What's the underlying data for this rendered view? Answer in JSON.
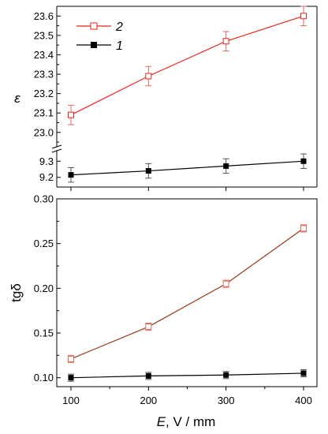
{
  "chart_data": [
    {
      "type": "line",
      "panel": "top",
      "ylabel": "ε",
      "xlabel": "",
      "x": [
        100,
        200,
        300,
        400
      ],
      "x_ticks": [
        "100",
        "200",
        "300",
        "400"
      ],
      "ylim_upper": [
        22.93,
        23.65
      ],
      "ylim_lower": [
        9.14,
        9.36
      ],
      "y_ticks_upper": [
        "23.0",
        "23.1",
        "23.2",
        "23.3",
        "23.4",
        "23.5",
        "23.6"
      ],
      "y_ticks_lower": [
        "9.2",
        "9.3"
      ],
      "axis_break": true,
      "grid": false,
      "legend_placement": "top-left",
      "series": [
        {
          "name": "2",
          "values": [
            23.09,
            23.29,
            23.47,
            23.6
          ],
          "errors": [
            0.05,
            0.05,
            0.05,
            0.05
          ],
          "color": "#e8251f",
          "marker": "open-square"
        },
        {
          "name": "1",
          "values": [
            9.215,
            9.24,
            9.27,
            9.3
          ],
          "errors": [
            0.045,
            0.045,
            0.045,
            0.045
          ],
          "color": "#000000",
          "marker": "filled-square"
        }
      ]
    },
    {
      "type": "line",
      "panel": "bottom",
      "ylabel": "tgδ",
      "xlabel": "E, V / mm",
      "x": [
        100,
        200,
        300,
        400
      ],
      "x_ticks": [
        "100",
        "200",
        "300",
        "400"
      ],
      "ylim": [
        0.09,
        0.3
      ],
      "y_ticks": [
        "0.10",
        "0.15",
        "0.20",
        "0.25",
        "0.30"
      ],
      "grid": false,
      "series": [
        {
          "name": "2",
          "values": [
            0.121,
            0.157,
            0.205,
            0.267
          ],
          "errors": [
            0.004,
            0.004,
            0.004,
            0.004
          ],
          "color": "#9a3a1a",
          "marker": "open-square",
          "marker_color": "#e06a5a"
        },
        {
          "name": "1",
          "values": [
            0.1,
            0.102,
            0.103,
            0.105
          ],
          "errors": [
            0.004,
            0.004,
            0.004,
            0.004
          ],
          "color": "#000000",
          "marker": "filled-square"
        }
      ]
    }
  ]
}
